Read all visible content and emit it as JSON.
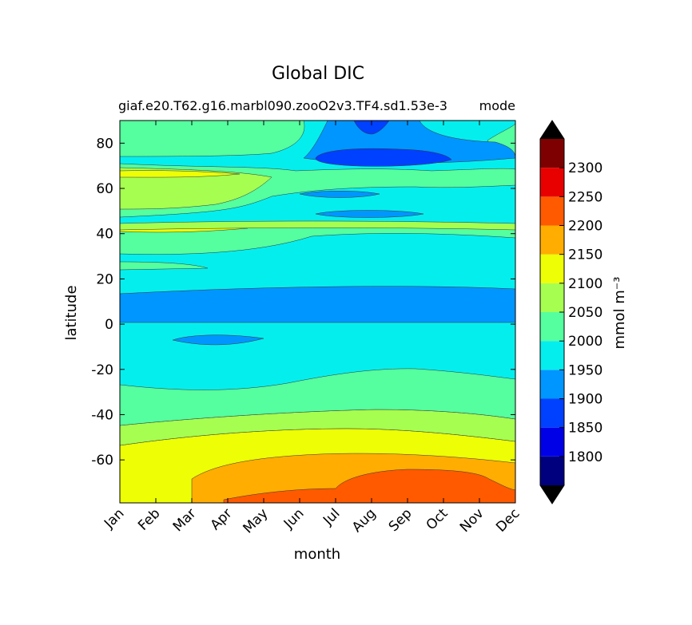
{
  "chart_data": {
    "type": "contour",
    "title": "Global DIC",
    "subtitle_left": "giaf.e20.T62.g16.marbl090.zooO2v3.TF4.sd1.53e-3",
    "subtitle_right": "mode",
    "xlabel": "month",
    "ylabel": "latitude",
    "x_ticks": [
      "Jan",
      "Feb",
      "Mar",
      "Apr",
      "May",
      "Jun",
      "Jul",
      "Aug",
      "Sep",
      "Oct",
      "Nov",
      "Dec"
    ],
    "y_ticks": [
      80,
      60,
      40,
      20,
      0,
      -20,
      -40,
      -60
    ],
    "ylim": [
      -79,
      90
    ],
    "colorbar": {
      "label": "mmol m⁻³",
      "tick_labels": [
        "1800",
        "1850",
        "1900",
        "1950",
        "2000",
        "2050",
        "2100",
        "2150",
        "2200",
        "2250",
        "2300"
      ],
      "levels": [
        1750,
        1800,
        1850,
        1900,
        1950,
        2000,
        2050,
        2100,
        2150,
        2200,
        2250,
        2300,
        2350
      ],
      "colors": [
        "#00007f",
        "#0000e6",
        "#0040ff",
        "#0096ff",
        "#05eeee",
        "#55ff9f",
        "#a6ff50",
        "#eeff05",
        "#ffad00",
        "#ff5a00",
        "#e80000",
        "#7f0000"
      ],
      "extend": "both",
      "over_color": "#000000",
      "under_color": "#000000"
    },
    "bands": [
      {
        "lat": [
          -79,
          -65
        ],
        "level": 2200,
        "color": "#ff5a00"
      },
      {
        "lat": [
          -79,
          -55
        ],
        "level": 2150,
        "color": "#ffad00"
      },
      {
        "lat": [
          -60,
          -47
        ],
        "level": 2100,
        "color": "#eeff05"
      },
      {
        "lat": [
          -47,
          -38
        ],
        "level": 2050,
        "color": "#a6ff50"
      },
      {
        "lat": [
          -38,
          -25
        ],
        "level": 2000,
        "color": "#55ff9f"
      },
      {
        "lat": [
          -25,
          0
        ],
        "level": 1950,
        "color": "#05eeee"
      },
      {
        "lat": [
          0,
          13
        ],
        "level": 1900,
        "color": "#0096ff"
      },
      {
        "lat": [
          13,
          27
        ],
        "level": 1950,
        "color": "#05eeee"
      },
      {
        "lat": [
          27,
          43
        ],
        "level": 2000,
        "color": "#55ff9f"
      },
      {
        "lat": [
          43,
          44
        ],
        "level": 2100,
        "color": "#eeff05"
      },
      {
        "lat": [
          44,
          70
        ],
        "level": 2050,
        "color": "#a6ff50"
      },
      {
        "lat": [
          70,
          90
        ],
        "level": 2000,
        "color": "#55ff9f"
      },
      {
        "lat": [
          72,
          80
        ],
        "level": 1900,
        "color": "#0096ff"
      },
      {
        "lat": [
          74,
          78
        ],
        "level": 1850,
        "color": "#0040ff"
      }
    ]
  }
}
